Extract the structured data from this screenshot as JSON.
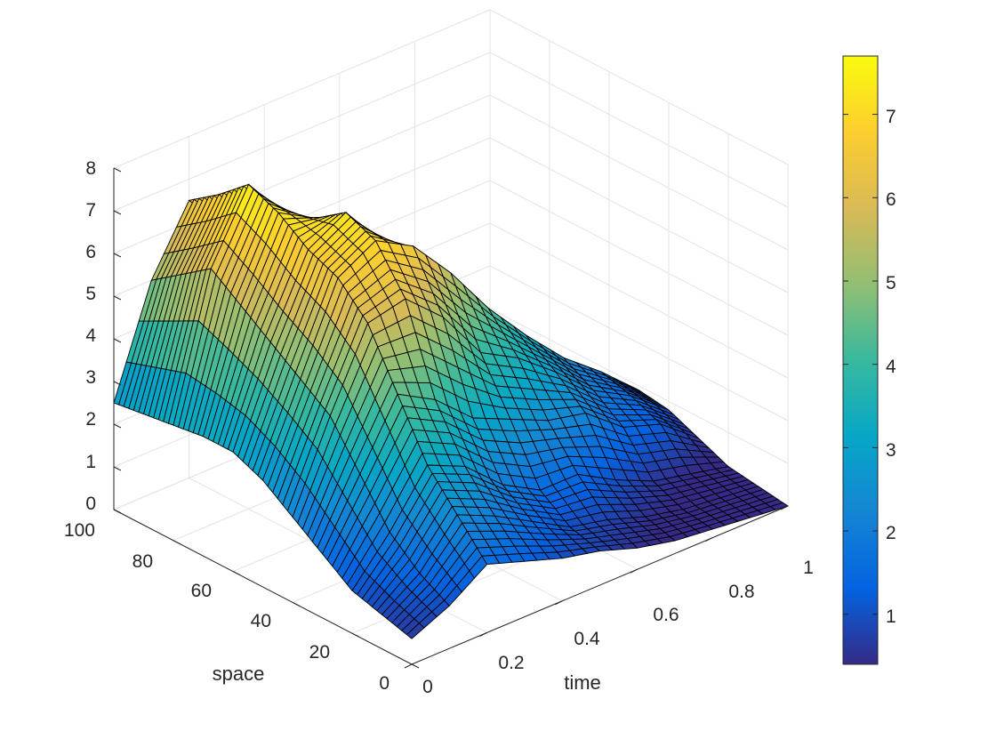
{
  "chart_data": {
    "type": "surface",
    "title": "",
    "xlabel": "time",
    "ylabel": "space",
    "zlabel": "",
    "x_ticks": [
      "0",
      "0.2",
      "0.4",
      "0.6",
      "0.8",
      "1"
    ],
    "y_ticks": [
      "0",
      "20",
      "40",
      "60",
      "80",
      "100"
    ],
    "z_ticks": [
      "0",
      "1",
      "2",
      "3",
      "4",
      "5",
      "6",
      "7",
      "8"
    ],
    "colorbar_ticks": [
      "1",
      "2",
      "3",
      "4",
      "5",
      "6",
      "7"
    ],
    "xlim": [
      0,
      1
    ],
    "ylim": [
      0,
      100
    ],
    "zlim": [
      0,
      8
    ],
    "clim": [
      0.4,
      7.7
    ],
    "colormap": "parula",
    "grid": true,
    "edge_color": "#000000",
    "time_samples": [
      0.0,
      0.1,
      0.2,
      0.3,
      0.4,
      0.5,
      0.6,
      0.7,
      0.8,
      0.9,
      1.0
    ],
    "space_samples": [
      0,
      10,
      20,
      30,
      40,
      50,
      60,
      70,
      80,
      90,
      100
    ],
    "u": [
      [
        0.6,
        1.0,
        1.6,
        1.3,
        1.0,
        0.8,
        0.5,
        0.3,
        0.2,
        0.1,
        0.0
      ],
      [
        0.8,
        1.4,
        2.4,
        2.0,
        1.5,
        1.0,
        0.8,
        0.5,
        0.3,
        0.2,
        0.1
      ],
      [
        1.0,
        2.0,
        3.2,
        2.8,
        2.0,
        1.5,
        1.5,
        1.0,
        0.6,
        0.4,
        0.2
      ],
      [
        1.5,
        3.0,
        4.5,
        4.0,
        3.2,
        2.8,
        2.4,
        2.2,
        1.5,
        1.2,
        0.5
      ],
      [
        2.0,
        4.0,
        5.8,
        6.0,
        5.2,
        4.0,
        3.5,
        2.8,
        2.0,
        1.5,
        0.8
      ],
      [
        2.5,
        4.5,
        6.5,
        7.0,
        6.5,
        5.5,
        4.3,
        3.3,
        2.4,
        1.7,
        0.9
      ],
      [
        2.8,
        5.0,
        6.8,
        7.3,
        6.2,
        5.0,
        4.0,
        3.0,
        2.2,
        1.5,
        0.8
      ],
      [
        2.8,
        5.5,
        7.3,
        6.8,
        5.5,
        4.5,
        3.5,
        2.6,
        1.9,
        1.3,
        0.6
      ],
      [
        2.7,
        6.0,
        7.6,
        6.5,
        5.0,
        4.0,
        3.0,
        2.2,
        1.6,
        1.1,
        0.5
      ],
      [
        2.6,
        5.5,
        7.0,
        6.0,
        4.5,
        3.5,
        2.6,
        1.9,
        1.4,
        0.9,
        0.4
      ],
      [
        2.5,
        5.0,
        6.5,
        5.5,
        4.0,
        3.0,
        2.2,
        1.6,
        1.2,
        0.8,
        0.4
      ]
    ]
  }
}
